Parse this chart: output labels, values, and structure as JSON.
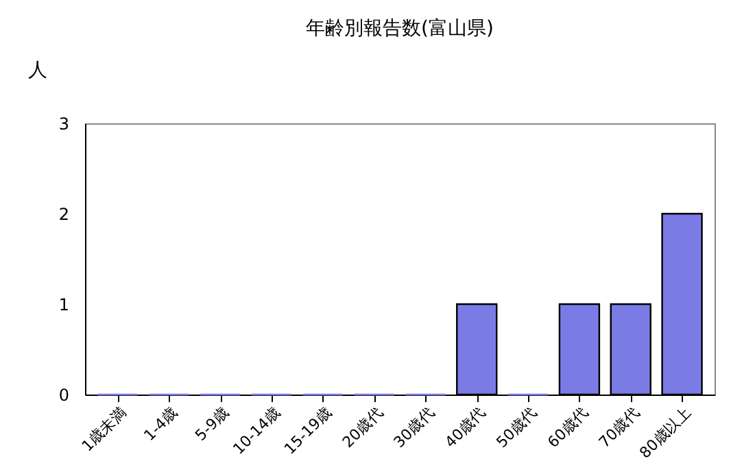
{
  "chart_data": {
    "type": "bar",
    "title": "年齢別報告数(富山県)",
    "ylabel": "人",
    "categories": [
      "1歳未満",
      "1-4歳",
      "5-9歳",
      "10-14歳",
      "15-19歳",
      "20歳代",
      "30歳代",
      "40歳代",
      "50歳代",
      "60歳代",
      "70歳代",
      "80歳以上"
    ],
    "values": [
      0,
      0,
      0,
      0,
      0,
      0,
      0,
      1,
      0,
      1,
      1,
      2
    ],
    "color": "#7b7be6",
    "ylim": [
      0,
      3
    ],
    "yticks": [
      0,
      1,
      2,
      3
    ],
    "grid": false
  }
}
